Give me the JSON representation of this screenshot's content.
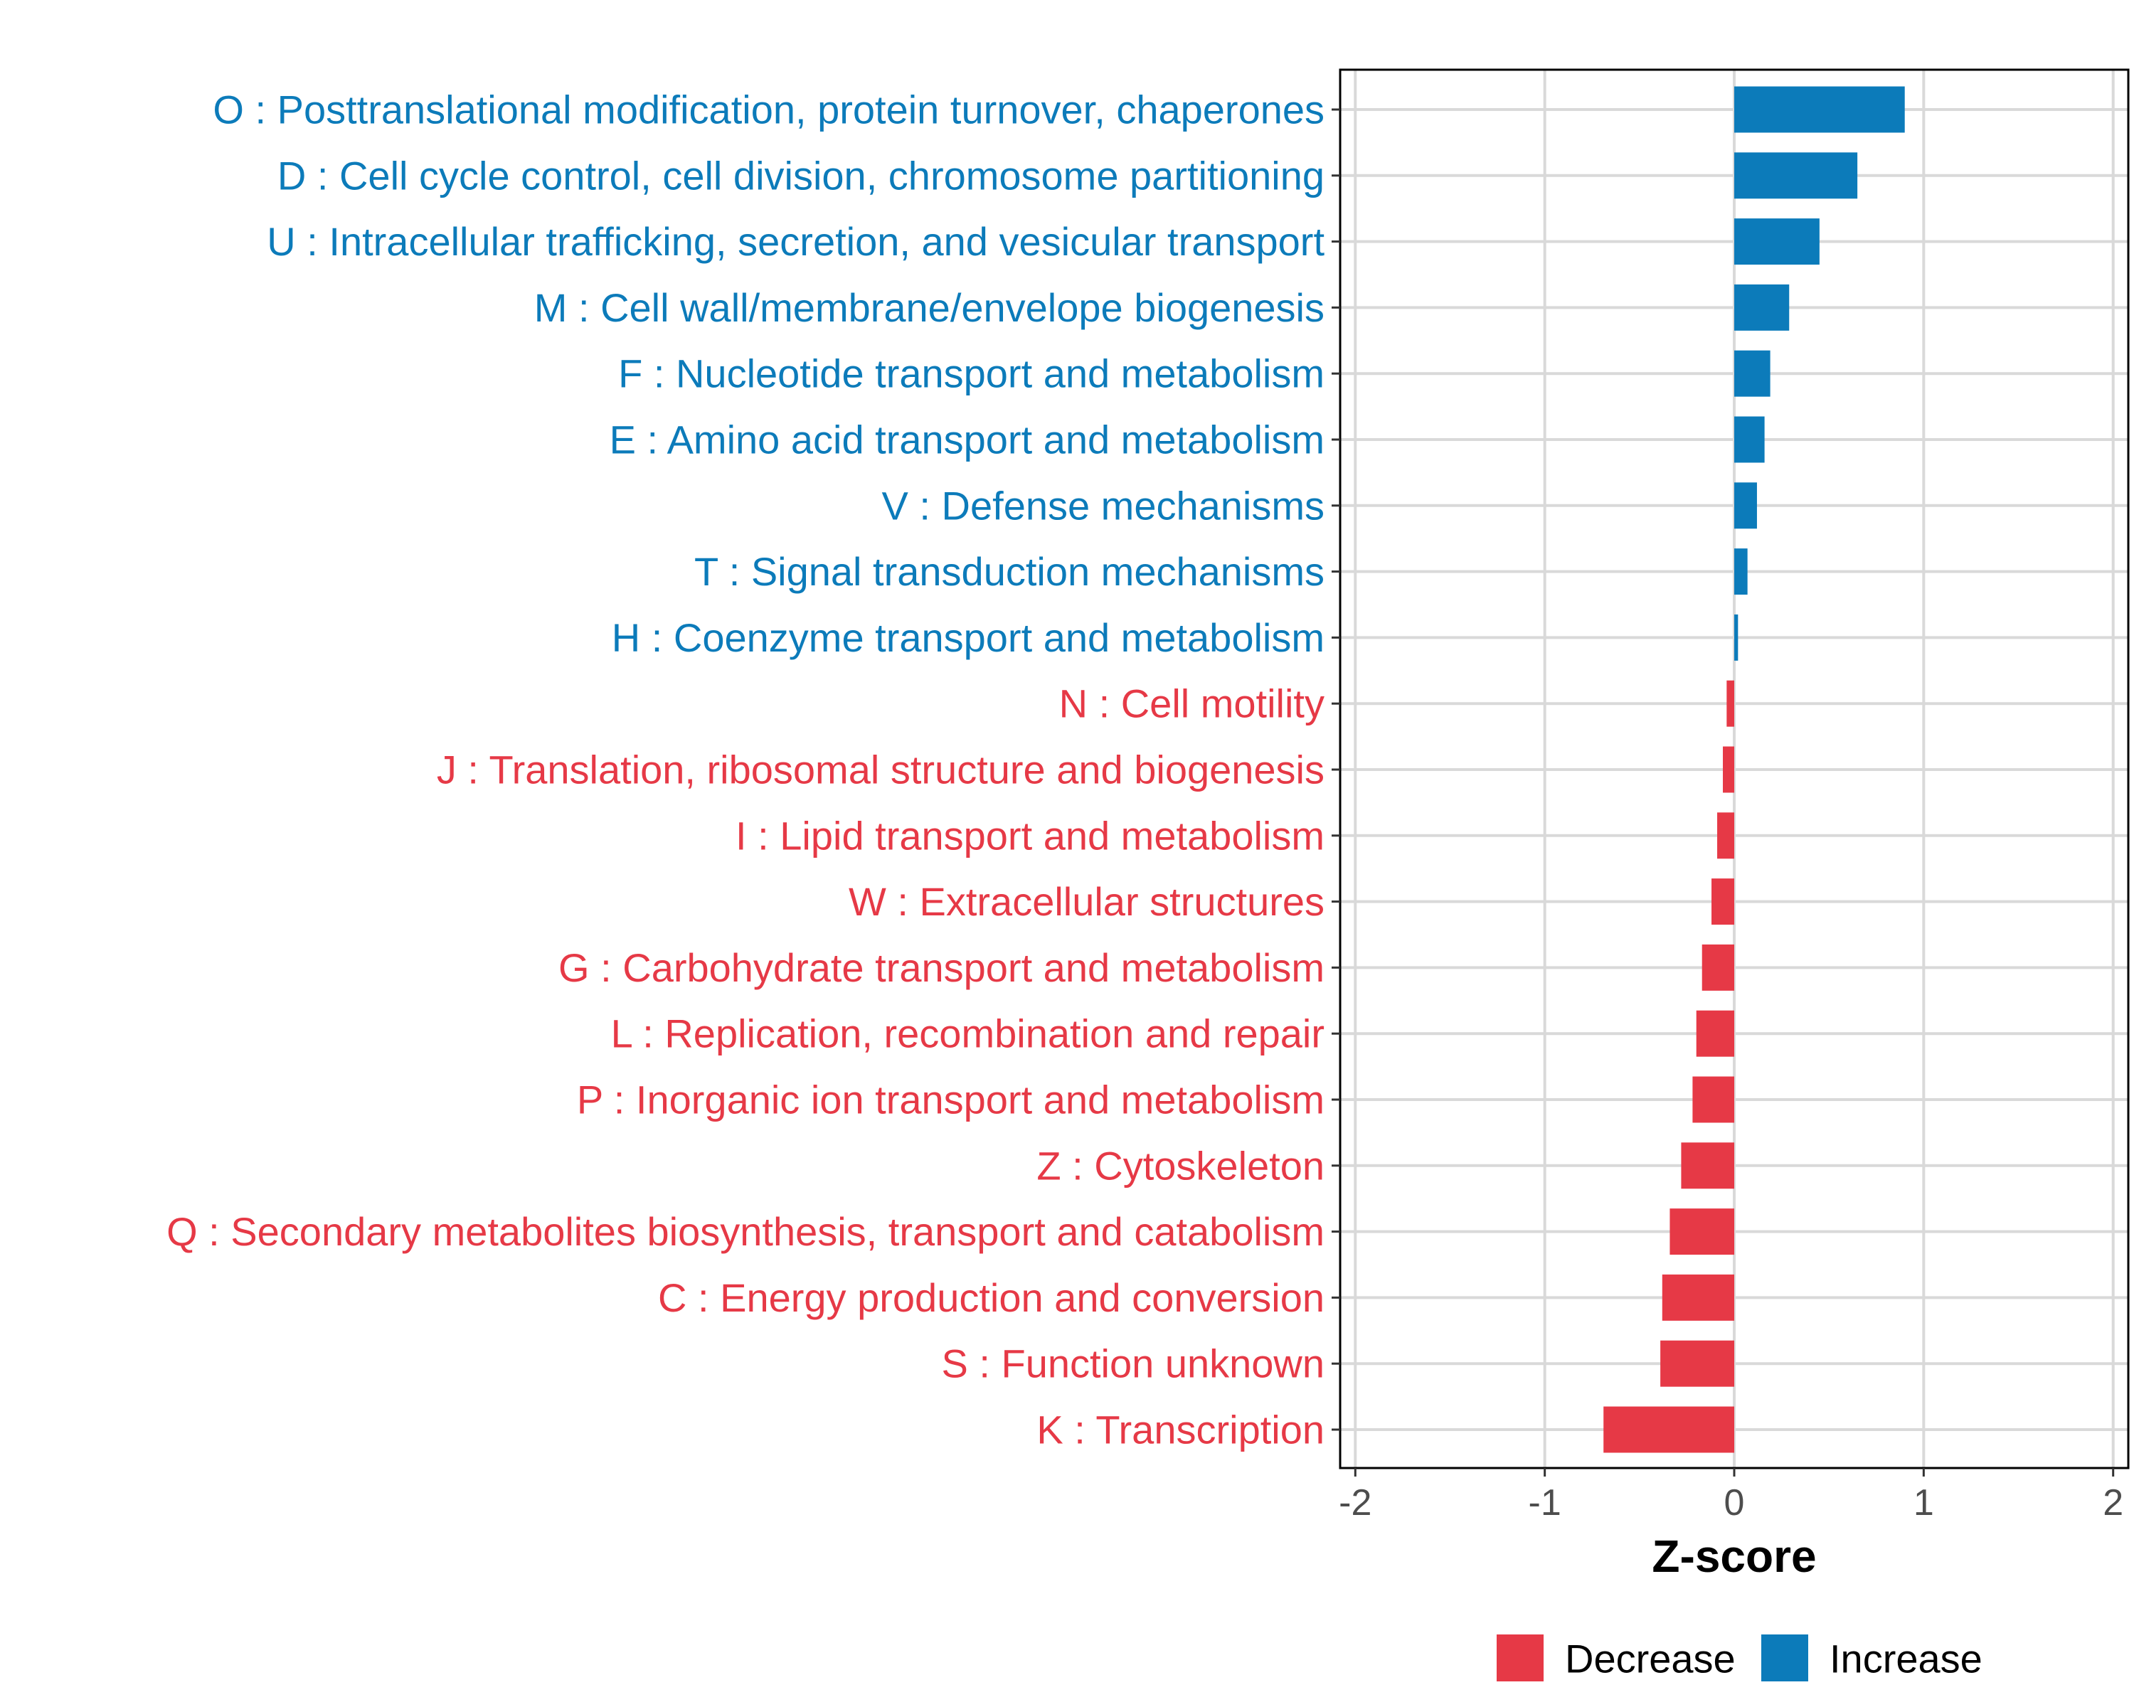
{
  "chart_data": {
    "type": "bar",
    "orientation": "horizontal",
    "title": "",
    "xlabel": "Z-score",
    "ylabel": "",
    "xlim": [
      -2.08,
      2.08
    ],
    "xticks": [
      -2,
      -1,
      0,
      1,
      2
    ],
    "grid": true,
    "legend_position": "bottom",
    "colors": {
      "Decrease": "#e63946",
      "Increase": "#0c7bba"
    },
    "legend": [
      {
        "name": "Decrease",
        "color": "#e63946"
      },
      {
        "name": "Increase",
        "color": "#0c7bba"
      }
    ],
    "categories": [
      "O : Posttranslational modification, protein turnover, chaperones",
      "D : Cell cycle control, cell division, chromosome partitioning",
      "U : Intracellular trafficking, secretion, and vesicular transport",
      "M : Cell wall/membrane/envelope biogenesis",
      "F : Nucleotide transport and metabolism",
      "E : Amino acid transport and metabolism",
      "V : Defense mechanisms",
      "T : Signal transduction mechanisms",
      "H : Coenzyme transport and metabolism",
      "N : Cell motility",
      "J : Translation, ribosomal structure and biogenesis",
      "I : Lipid transport and metabolism",
      "W : Extracellular structures",
      "G : Carbohydrate transport and metabolism",
      "L : Replication, recombination and repair",
      "P : Inorganic ion transport and metabolism",
      "Z : Cytoskeleton",
      "Q : Secondary metabolites biosynthesis, transport and catabolism",
      "C : Energy production and conversion",
      "S : Function unknown",
      "K : Transcription"
    ],
    "values": [
      0.9,
      0.65,
      0.45,
      0.29,
      0.19,
      0.16,
      0.12,
      0.07,
      0.02,
      -0.04,
      -0.06,
      -0.09,
      -0.12,
      -0.17,
      -0.2,
      -0.22,
      -0.28,
      -0.34,
      -0.38,
      -0.39,
      -0.69
    ],
    "groups": [
      "Increase",
      "Increase",
      "Increase",
      "Increase",
      "Increase",
      "Increase",
      "Increase",
      "Increase",
      "Increase",
      "Decrease",
      "Decrease",
      "Decrease",
      "Decrease",
      "Decrease",
      "Decrease",
      "Decrease",
      "Decrease",
      "Decrease",
      "Decrease",
      "Decrease",
      "Decrease"
    ]
  }
}
